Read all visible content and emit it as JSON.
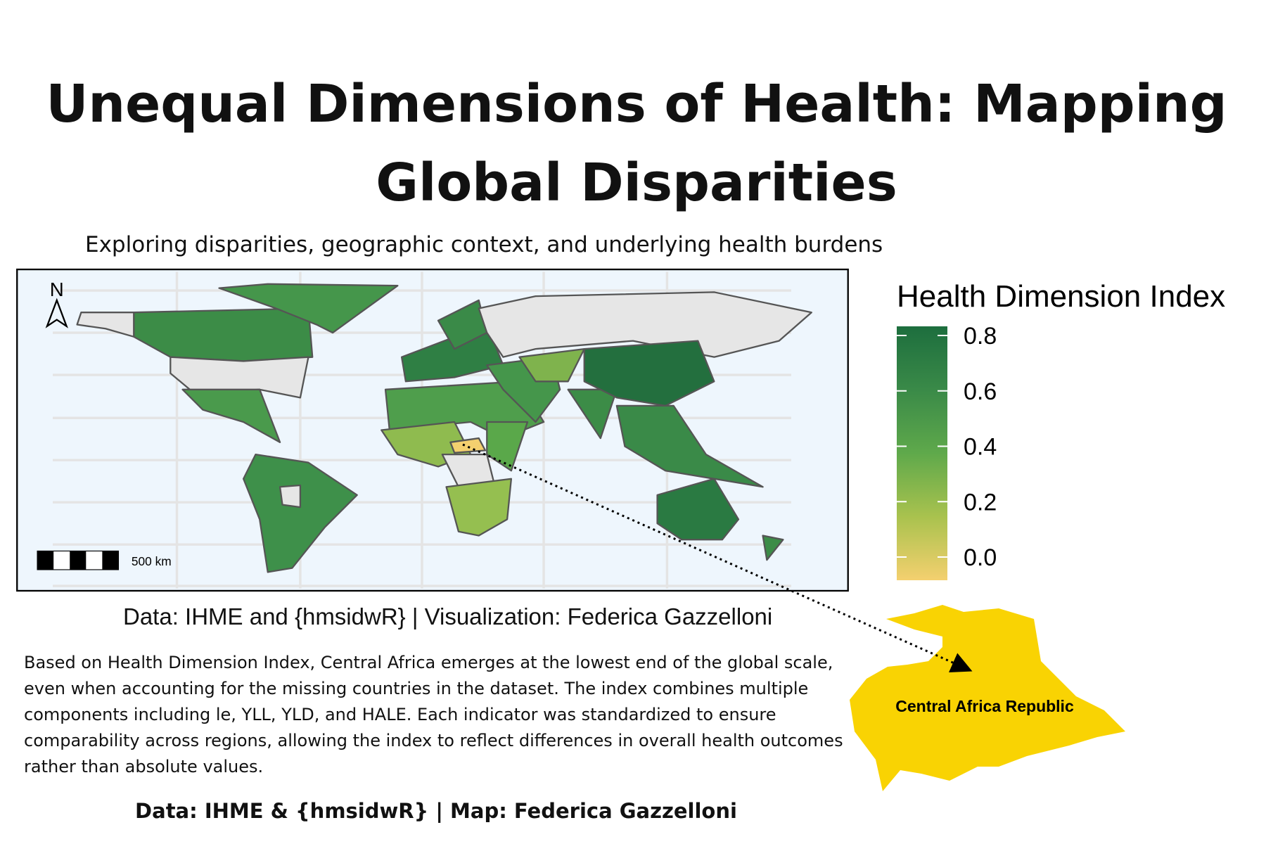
{
  "title": "Unequal Dimensions of Health: Mapping Global Disparities",
  "subtitle": "Exploring disparities, geographic context, and underlying health burdens",
  "map": {
    "north_label": "N",
    "scale_label": "500 km",
    "legend": {
      "title": "Health Dimension Index",
      "ticks": [
        {
          "value": 0,
          "label": "0.0"
        },
        0.2,
        0.4,
        0.6,
        0.8
      ],
      "colors": [
        "#f4d06f",
        "#a9c24e",
        "#5fa94b",
        "#3a8a48",
        "#1d6e3e"
      ]
    }
  },
  "caption": "Data: IHME and {hmsidwR} | Visualization: Federica Gazzelloni",
  "description": "Based on Health Dimension Index, Central Africa emerges at the lowest end of the global scale, even when accounting for the missing countries in the dataset. The index combines multiple components including le, YLL, YLD, and HALE. Each indicator was standardized to ensure comparability across regions, allowing the index to reflect differences in overall health outcomes rather than absolute values.",
  "callout": {
    "label": "Central Africa Republic"
  },
  "footer": "Data: IHME & {hmsidwR} | Map: Federica Gazzelloni"
}
